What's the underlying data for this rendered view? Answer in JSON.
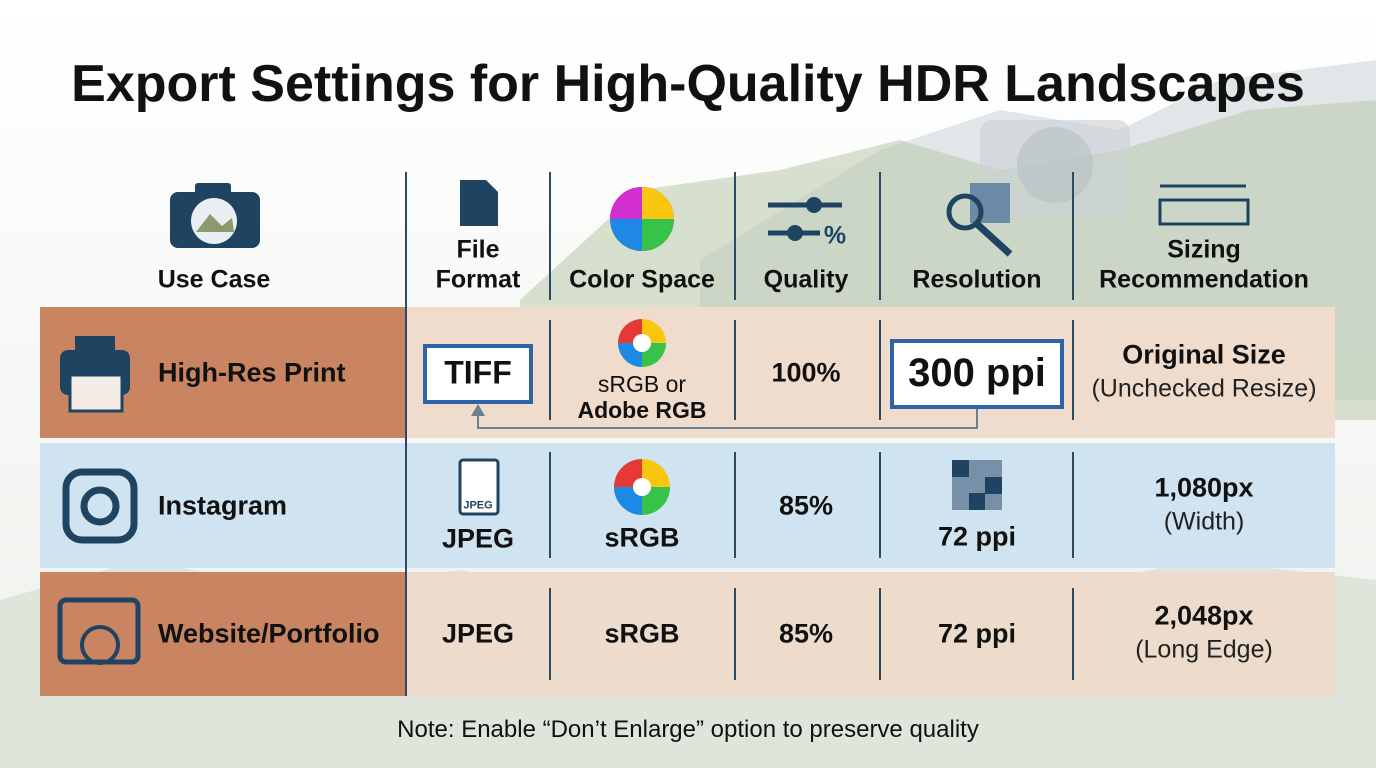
{
  "title": "Export Settings for High-Quality HDR Landscapes",
  "columns": [
    {
      "lines": [
        "Use Case"
      ]
    },
    {
      "lines": [
        "File",
        "Format"
      ]
    },
    {
      "lines": [
        "Color Space"
      ]
    },
    {
      "lines": [
        "Quality"
      ],
      "icon_text": "%"
    },
    {
      "lines": [
        "Resolution"
      ]
    },
    {
      "lines": [
        "Sizing",
        "Recommendation"
      ]
    }
  ],
  "rows": [
    {
      "use_case": "High-Res Print",
      "format": "TIFF",
      "color_space": [
        "sRGB or",
        "Adobe RGB"
      ],
      "quality": "100%",
      "resolution": "300 ppi",
      "sizing": [
        "Original Size",
        "(Unchecked Resize)"
      ]
    },
    {
      "use_case": "Instagram",
      "format": "JPEG",
      "format_icon_text": "JPEG",
      "color_space": [
        "sRGB"
      ],
      "quality": "85%",
      "resolution": "72 ppi",
      "sizing": [
        "1,080px",
        "(Width)"
      ]
    },
    {
      "use_case": "Website/Portfolio",
      "format": "JPEG",
      "color_space": [
        "sRGB"
      ],
      "quality": "85%",
      "resolution": "72 ppi",
      "sizing": [
        "2,048px",
        "(Long Edge)"
      ]
    }
  ],
  "note": "Note: Enable “Don’t Enlarge” option to preserve quality"
}
